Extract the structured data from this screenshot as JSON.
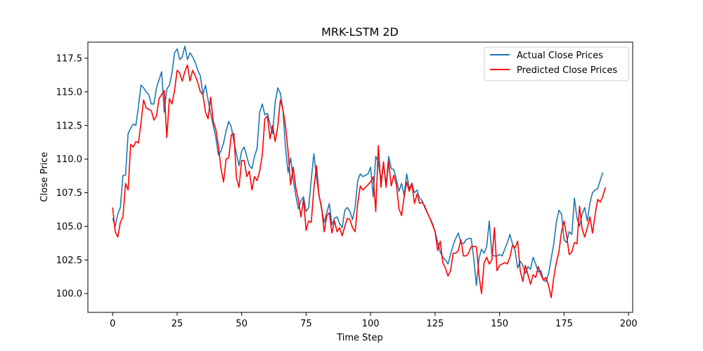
{
  "chart_data": {
    "type": "line",
    "title": "MRK-LSTM 2D",
    "xlabel": "Time Step",
    "ylabel": "Close Price",
    "xlim": [
      -9.6,
      201.6
    ],
    "ylim": [
      98.6,
      118.7
    ],
    "xticks": [
      0,
      25,
      50,
      75,
      100,
      125,
      150,
      175,
      200
    ],
    "xtick_labels": [
      "0",
      "25",
      "50",
      "75",
      "100",
      "125",
      "150",
      "175",
      "200"
    ],
    "yticks": [
      100.0,
      102.5,
      105.0,
      107.5,
      110.0,
      112.5,
      115.0,
      117.5
    ],
    "ytick_labels": [
      "100.0",
      "102.5",
      "105.0",
      "107.5",
      "110.0",
      "112.5",
      "115.0",
      "117.5"
    ],
    "grid": false,
    "legend_position": "top-right",
    "series": [
      {
        "name": "Actual Close Prices",
        "color": "#1f77b4",
        "values": [
          105.6,
          105.0,
          105.9,
          106.4,
          108.8,
          108.8,
          111.9,
          112.3,
          112.6,
          112.5,
          113.9,
          115.5,
          115.3,
          115.0,
          114.8,
          114.1,
          114.1,
          115.3,
          115.9,
          116.5,
          113.5,
          115.2,
          115.5,
          116.4,
          117.9,
          118.2,
          117.4,
          117.6,
          118.4,
          117.4,
          117.9,
          117.6,
          117.2,
          116.6,
          116.2,
          114.8,
          115.5,
          114.4,
          113.4,
          112.5,
          111.6,
          110.3,
          110.6,
          111.2,
          112.1,
          112.8,
          112.4,
          111.3,
          110.4,
          109.5,
          110.6,
          110.9,
          110.2,
          109.5,
          109.3,
          110.2,
          110.8,
          113.5,
          114.1,
          113.3,
          113.4,
          112.6,
          111.9,
          114.2,
          115.3,
          114.9,
          113.7,
          110.9,
          109.0,
          110.1,
          108.5,
          107.3,
          106.3,
          106.9,
          107.2,
          106.1,
          106.4,
          108.5,
          110.4,
          108.7,
          107.3,
          106.3,
          105.3,
          106.0,
          106.7,
          105.1,
          105.6,
          105.7,
          105.2,
          104.9,
          106.2,
          106.4,
          106.1,
          105.5,
          106.4,
          108.4,
          108.9,
          108.7,
          108.8,
          108.9,
          109.4,
          107.2,
          110.2,
          109.8,
          108.4,
          109.6,
          108.1,
          110.2,
          109.3,
          109.2,
          108.5,
          107.6,
          108.2,
          107.3,
          108.9,
          107.8,
          108.2,
          107.5,
          107.7,
          107.1,
          106.9,
          106.4,
          106.0,
          105.6,
          105.2,
          104.6,
          103.8,
          103.1,
          102.7,
          102.5,
          102.2,
          102.9,
          103.6,
          104.1,
          104.5,
          103.8,
          103.7,
          104.0,
          104.1,
          104.1,
          102.6,
          100.6,
          102.6,
          103.3,
          103.0,
          103.5,
          105.4,
          102.9,
          102.8,
          102.8,
          102.9,
          102.8,
          103.3,
          103.8,
          104.4,
          103.7,
          103.2,
          101.9,
          102.4,
          102.1,
          101.5,
          102.0,
          101.8,
          102.7,
          102.2,
          101.6,
          101.7,
          101.0,
          100.9,
          101.5,
          102.6,
          103.7,
          105.3,
          106.2,
          105.9,
          104.0,
          103.8,
          104.6,
          104.4,
          107.1,
          105.6,
          105.0,
          105.9,
          106.4,
          105.4,
          106.7,
          107.5,
          107.7,
          107.8,
          108.4,
          109.0
        ]
      },
      {
        "name": "Predicted Close Prices",
        "color": "#ff0000",
        "values": [
          106.4,
          104.6,
          104.2,
          105.3,
          105.7,
          108.2,
          107.7,
          111.1,
          110.9,
          111.3,
          111.2,
          112.7,
          114.4,
          113.8,
          113.7,
          113.6,
          112.9,
          113.2,
          114.5,
          114.8,
          115.1,
          111.6,
          114.5,
          114.1,
          115.1,
          116.6,
          116.4,
          115.8,
          116.5,
          117.0,
          115.8,
          116.6,
          116.2,
          115.7,
          115.0,
          114.8,
          113.5,
          113.0,
          114.6,
          112.8,
          112.2,
          111.0,
          109.3,
          108.3,
          110.0,
          110.1,
          111.8,
          111.9,
          108.6,
          107.9,
          109.9,
          109.9,
          108.7,
          109.1,
          107.7,
          108.7,
          108.4,
          109.1,
          110.3,
          113.0,
          113.2,
          111.5,
          112.5,
          111.3,
          112.4,
          114.4,
          113.7,
          112.5,
          110.6,
          108.1,
          109.4,
          107.9,
          107.0,
          105.7,
          107.0,
          104.7,
          105.4,
          105.3,
          107.8,
          109.5,
          107.3,
          106.4,
          104.6,
          105.8,
          106.0,
          104.5,
          105.4,
          104.6,
          104.9,
          104.3,
          105.0,
          105.6,
          105.5,
          104.9,
          104.6,
          106.7,
          108.0,
          107.7,
          107.9,
          108.1,
          108.3,
          108.7,
          106.1,
          111.0,
          107.9,
          109.8,
          107.9,
          109.8,
          108.0,
          108.8,
          108.1,
          106.3,
          105.8,
          107.2,
          108.3,
          107.6,
          108.2,
          106.7,
          107.4,
          106.7,
          106.8,
          106.5,
          106.0,
          105.6,
          105.1,
          104.6,
          103.2,
          103.9,
          102.3,
          101.9,
          101.3,
          101.7,
          103.0,
          103.0,
          103.2,
          104.0,
          102.8,
          102.8,
          103.0,
          103.5,
          103.5,
          103.5,
          101.4,
          100.0,
          102.3,
          102.7,
          102.2,
          102.5,
          104.9,
          101.7,
          102.1,
          102.2,
          102.3,
          102.2,
          102.7,
          103.6,
          103.4,
          103.9,
          101.7,
          100.9,
          102.1,
          101.4,
          100.7,
          101.4,
          101.2,
          102.0,
          101.4,
          101.0,
          101.2,
          100.6,
          99.7,
          101.2,
          102.3,
          103.1,
          104.6,
          105.4,
          104.3,
          102.9,
          103.1,
          103.8,
          103.7,
          106.5,
          104.8,
          104.2,
          104.9,
          105.7,
          104.5,
          105.8,
          107.0,
          106.8,
          107.2,
          107.9
        ]
      }
    ]
  }
}
